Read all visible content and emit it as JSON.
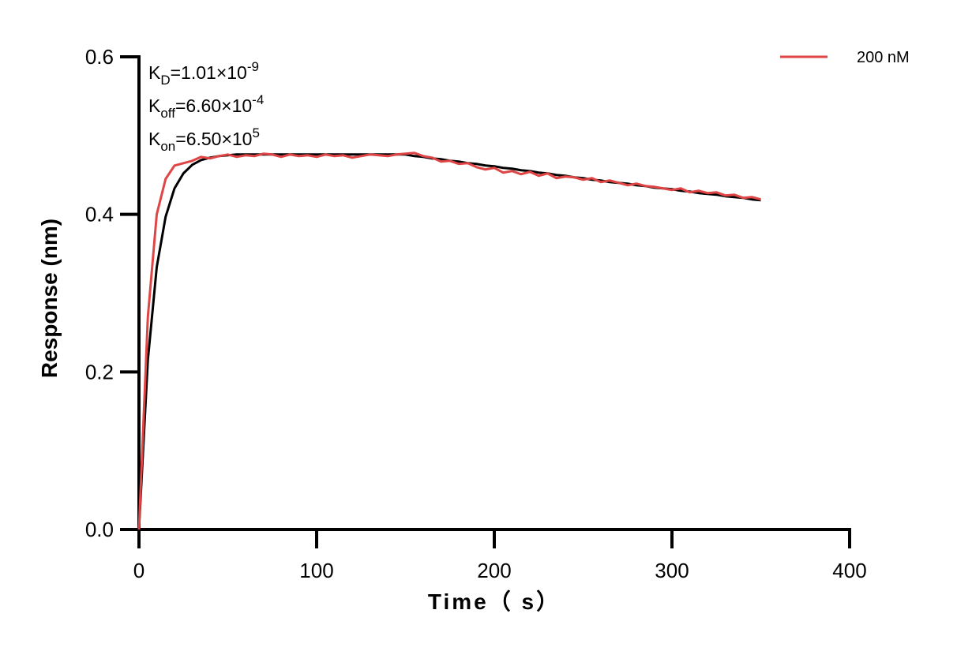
{
  "chart_data": {
    "type": "line",
    "x_label": "Time（ s）",
    "y_label": "Response (nm)",
    "xlim": [
      0,
      400
    ],
    "ylim": [
      0,
      0.6
    ],
    "xticks": [
      0,
      100,
      200,
      300,
      400
    ],
    "yticks": [
      {
        "value": 0,
        "label": "0.0"
      },
      0.2,
      0.4,
      0.6
    ],
    "legend": "top-right",
    "annotations": [
      {
        "base": "K",
        "sub": "D",
        "text": "=1.01×10",
        "sup": "-9"
      },
      {
        "base": "K",
        "sub": "off",
        "text": "=6.60×10",
        "sup": "-4"
      },
      {
        "base": "K",
        "sub": "on",
        "text": "=6.50×10",
        "sup": "5"
      }
    ],
    "x": [
      0,
      5,
      10,
      15,
      20,
      25,
      30,
      35,
      40,
      45,
      50,
      55,
      60,
      65,
      70,
      75,
      80,
      85,
      90,
      95,
      100,
      105,
      110,
      115,
      120,
      125,
      130,
      135,
      140,
      145,
      150,
      155,
      160,
      165,
      170,
      175,
      180,
      185,
      190,
      195,
      200,
      205,
      210,
      215,
      220,
      225,
      230,
      235,
      240,
      245,
      250,
      255,
      260,
      265,
      270,
      275,
      280,
      285,
      290,
      295,
      300,
      305,
      310,
      315,
      320,
      325,
      330,
      335,
      340,
      345,
      350
    ],
    "series": [
      {
        "color": "#000000",
        "values": [
          0,
          0.215,
          0.333,
          0.397,
          0.433,
          0.452,
          0.463,
          0.469,
          0.472,
          0.474,
          0.475,
          0.476,
          0.476,
          0.476,
          0.476,
          0.476,
          0.476,
          0.476,
          0.476,
          0.476,
          0.476,
          0.476,
          0.476,
          0.476,
          0.476,
          0.476,
          0.476,
          0.476,
          0.476,
          0.476,
          0.476,
          0.474,
          0.473,
          0.471,
          0.47,
          0.468,
          0.467,
          0.465,
          0.464,
          0.462,
          0.461,
          0.459,
          0.458,
          0.456,
          0.455,
          0.453,
          0.452,
          0.45,
          0.449,
          0.447,
          0.446,
          0.444,
          0.443,
          0.441,
          0.44,
          0.439,
          0.437,
          0.436,
          0.434,
          0.433,
          0.432,
          0.43,
          0.429,
          0.427,
          0.426,
          0.425,
          0.423,
          0.422,
          0.421,
          0.419,
          0.418
        ]
      },
      {
        "name": "200 nM",
        "color": "#e04545",
        "values": [
          0,
          0.27,
          0.4,
          0.445,
          0.462,
          0.465,
          0.468,
          0.473,
          0.471,
          0.474,
          0.476,
          0.473,
          0.475,
          0.474,
          0.477,
          0.476,
          0.473,
          0.476,
          0.474,
          0.475,
          0.473,
          0.476,
          0.474,
          0.475,
          0.472,
          0.474,
          0.476,
          0.475,
          0.474,
          0.476,
          0.477,
          0.478,
          0.474,
          0.472,
          0.467,
          0.468,
          0.464,
          0.465,
          0.46,
          0.457,
          0.459,
          0.453,
          0.455,
          0.451,
          0.454,
          0.449,
          0.452,
          0.446,
          0.448,
          0.447,
          0.444,
          0.446,
          0.441,
          0.443,
          0.44,
          0.437,
          0.439,
          0.436,
          0.435,
          0.433,
          0.431,
          0.433,
          0.428,
          0.43,
          0.427,
          0.428,
          0.424,
          0.425,
          0.421,
          0.422,
          0.419
        ]
      }
    ]
  }
}
